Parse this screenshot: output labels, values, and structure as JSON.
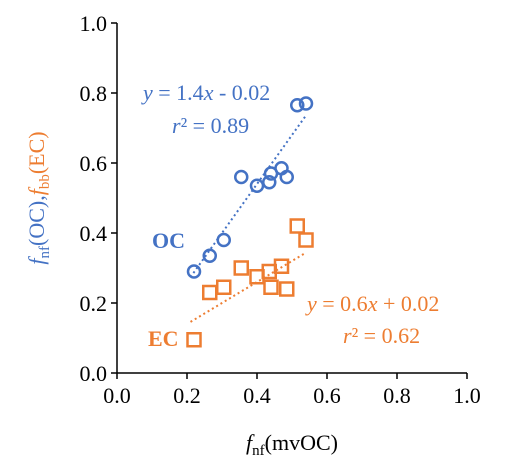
{
  "chart_data": {
    "type": "scatter",
    "xlim": [
      0.0,
      1.0
    ],
    "ylim": [
      0.0,
      1.0
    ],
    "x_ticks": [
      "0.0",
      "0.2",
      "0.4",
      "0.6",
      "0.8",
      "1.0"
    ],
    "y_ticks": [
      "0.0",
      "0.2",
      "0.4",
      "0.6",
      "0.8",
      "1.0"
    ],
    "grid": false,
    "xlabel": {
      "f": "f",
      "sub": "nf",
      "rest": "(mvOC)"
    },
    "ylabel": {
      "f1": "f",
      "sub1": "nf",
      "mid1": "(OC),",
      "f2": "f",
      "sub2": "bb",
      "mid2": "(EC)"
    },
    "series": [
      {
        "name": "OC",
        "marker": "circle",
        "color": "#4472C4",
        "x": [
          0.22,
          0.265,
          0.305,
          0.355,
          0.4,
          0.435,
          0.44,
          0.47,
          0.485,
          0.515,
          0.54
        ],
        "y": [
          0.29,
          0.335,
          0.38,
          0.56,
          0.535,
          0.545,
          0.57,
          0.585,
          0.56,
          0.765,
          0.77
        ],
        "fit": {
          "slope": 1.4,
          "intercept": -0.02,
          "x_range": [
            0.21,
            0.54
          ],
          "eq": {
            "y": "y",
            "mid": " = 1.4",
            "x": "x",
            "rest": " - 0.02"
          },
          "r2": {
            "r": "r",
            "rest": "² = 0.89"
          }
        }
      },
      {
        "name": "EC",
        "marker": "square",
        "color": "#ED7D31",
        "x": [
          0.22,
          0.265,
          0.305,
          0.355,
          0.4,
          0.435,
          0.44,
          0.47,
          0.485,
          0.515,
          0.54
        ],
        "y": [
          0.095,
          0.23,
          0.245,
          0.3,
          0.275,
          0.29,
          0.245,
          0.305,
          0.24,
          0.42,
          0.38
        ],
        "fit": {
          "slope": 0.6,
          "intercept": 0.02,
          "x_range": [
            0.21,
            0.54
          ],
          "eq": {
            "y": "y",
            "mid": " = 0.6",
            "x": "x",
            "rest": " + 0.02"
          },
          "r2": {
            "r": "r",
            "rest": "² = 0.62"
          }
        }
      }
    ]
  }
}
